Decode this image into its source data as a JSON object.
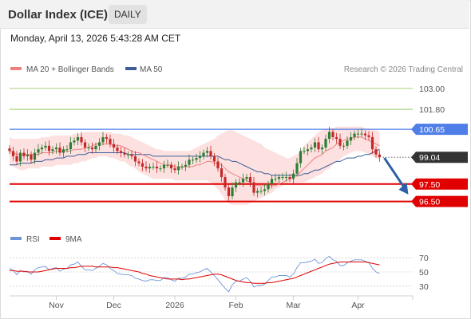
{
  "header": {
    "title": "Dollar Index (ICE)",
    "period": "DAILY"
  },
  "datetime": "Monday, April 13, 2026 5:43:28 AM CET",
  "legend": {
    "ma20": "MA 20 + Bollinger Bands",
    "ma50": "MA 50",
    "copyright": "Research © 2026 Trading Central",
    "rsi": "RSI",
    "ma9": "9MA"
  },
  "colors": {
    "bullish": "#2e7d32",
    "bearish": "#c62828",
    "ma20": "#f08080",
    "bands": "#fcd6d6",
    "ma50": "#3d5f99",
    "resistance": "#8bc34a",
    "pivot": "#4f7ee8",
    "support": "#e00000",
    "last_price_tag": "#333333",
    "rsi": "#6d96d6",
    "rsi_ma": "#e00000"
  },
  "chart_data": [
    {
      "type": "candlestick",
      "x_ticks": [
        "Nov",
        "Dec",
        "2026",
        "Feb",
        "Mar",
        "Apr"
      ],
      "ylim": [
        95.7,
        103.5
      ],
      "levels": [
        {
          "label": "103.00",
          "value": 103.0,
          "kind": "resistance"
        },
        {
          "label": "101.80",
          "value": 101.8,
          "kind": "resistance"
        },
        {
          "label": "100.65",
          "value": 100.65,
          "kind": "pivot"
        },
        {
          "label": "99.04",
          "value": 99.04,
          "kind": "last"
        },
        {
          "label": "97.50",
          "value": 97.5,
          "kind": "support"
        },
        {
          "label": "96.50",
          "value": 96.5,
          "kind": "support"
        }
      ],
      "last_price": 99.04,
      "forecast_arrow": {
        "from": 99.0,
        "to": 96.9,
        "direction": "down"
      },
      "closes": [
        99.4,
        99.1,
        98.8,
        99.3,
        99.1,
        99.2,
        98.9,
        99.3,
        99.5,
        99.6,
        99.7,
        99.4,
        99.5,
        99.6,
        99.3,
        99.5,
        99.5,
        99.9,
        100.0,
        100.2,
        99.9,
        99.6,
        99.6,
        99.5,
        99.7,
        99.9,
        100.2,
        100.1,
        99.8,
        99.6,
        99.4,
        99.3,
        99.2,
        99.2,
        99.1,
        98.8,
        98.7,
        98.5,
        98.4,
        98.5,
        98.5,
        98.4,
        98.4,
        98.6,
        98.6,
        98.4,
        98.3,
        98.5,
        98.5,
        98.6,
        98.9,
        98.9,
        99.0,
        99.1,
        99.3,
        99.4,
        99.1,
        98.8,
        98.4,
        97.9,
        97.3,
        96.8,
        97.3,
        97.6,
        97.6,
        97.8,
        97.9,
        97.6,
        97.0,
        97.1,
        97.1,
        97.2,
        97.5,
        97.8,
        97.8,
        97.9,
        97.9,
        97.9,
        97.8,
        98.1,
        98.7,
        99.4,
        99.4,
        99.5,
        99.6,
        99.9,
        99.5,
        99.6,
        100.1,
        100.5,
        100.2,
        100.1,
        99.7,
        99.7,
        100.0,
        100.2,
        100.4,
        100.4,
        100.4,
        100.3,
        100.2,
        99.5,
        99.2,
        99.04
      ],
      "ma20": [
        99.4,
        99.3,
        99.2,
        99.2,
        99.2,
        99.2,
        99.2,
        99.2,
        99.2,
        99.3,
        99.3,
        99.3,
        99.3,
        99.4,
        99.4,
        99.4,
        99.4,
        99.4,
        99.5,
        99.5,
        99.5,
        99.6,
        99.6,
        99.7,
        99.8,
        99.8,
        99.8,
        99.8,
        99.8,
        99.7,
        99.7,
        99.7,
        99.6,
        99.5,
        99.4,
        99.3,
        99.3,
        99.2,
        99.1,
        99.0,
        98.9,
        98.8,
        98.7,
        98.6,
        98.6,
        98.6,
        98.5,
        98.5,
        98.5,
        98.5,
        98.5,
        98.5,
        98.6,
        98.6,
        98.7,
        98.8,
        98.8,
        98.7,
        98.7,
        98.6,
        98.4,
        98.2,
        98.1,
        98.0,
        97.9,
        97.8,
        97.7,
        97.6,
        97.5,
        97.4,
        97.4,
        97.4,
        97.4,
        97.4,
        97.4,
        97.5,
        97.6,
        97.7,
        97.8,
        97.9,
        98.0,
        98.2,
        98.4,
        98.6,
        98.8,
        99.0,
        99.1,
        99.2,
        99.4,
        99.5,
        99.6,
        99.8,
        99.9,
        100.0,
        100.1,
        100.1,
        100.2,
        100.2,
        100.2,
        100.1,
        100.0,
        99.9,
        99.8,
        99.7
      ],
      "upper_band": [
        100.2,
        100.1,
        100.1,
        100.1,
        100.1,
        100.1,
        100.1,
        100.1,
        100.1,
        100.2,
        100.2,
        100.2,
        100.3,
        100.3,
        100.3,
        100.3,
        100.3,
        100.3,
        100.4,
        100.4,
        100.4,
        100.5,
        100.5,
        100.5,
        100.5,
        100.5,
        100.5,
        100.5,
        100.5,
        100.4,
        100.4,
        100.4,
        100.3,
        100.3,
        100.2,
        100.1,
        100.0,
        99.9,
        99.8,
        99.7,
        99.6,
        99.5,
        99.5,
        99.4,
        99.4,
        99.4,
        99.4,
        99.4,
        99.4,
        99.4,
        99.4,
        99.5,
        99.6,
        99.7,
        99.8,
        99.9,
        100.0,
        100.1,
        100.3,
        100.4,
        100.5,
        100.6,
        100.6,
        100.5,
        100.4,
        100.3,
        100.2,
        100.1,
        100.0,
        99.9,
        99.8,
        99.6,
        99.5,
        99.4,
        99.3,
        99.2,
        99.1,
        99.0,
        99.0,
        99.1,
        99.2,
        99.4,
        99.7,
        99.9,
        100.1,
        100.3,
        100.5,
        100.6,
        100.7,
        100.7,
        100.7,
        100.8,
        100.8,
        100.8,
        100.8,
        100.8,
        100.8,
        100.8,
        100.8,
        100.7,
        100.7,
        100.6,
        100.6,
        100.5
      ],
      "lower_band": [
        98.6,
        98.5,
        98.4,
        98.3,
        98.3,
        98.4,
        98.4,
        98.4,
        98.4,
        98.5,
        98.5,
        98.5,
        98.5,
        98.6,
        98.6,
        98.6,
        98.6,
        98.6,
        98.7,
        98.7,
        98.8,
        98.8,
        98.9,
        99.0,
        99.0,
        99.1,
        99.1,
        99.1,
        99.0,
        99.0,
        98.9,
        98.8,
        98.8,
        98.6,
        98.5,
        98.4,
        98.2,
        98.1,
        98.0,
        97.9,
        97.8,
        97.8,
        97.8,
        97.8,
        97.8,
        97.8,
        97.7,
        97.7,
        97.7,
        97.7,
        97.7,
        97.7,
        97.7,
        97.7,
        97.7,
        97.7,
        97.6,
        97.4,
        97.2,
        96.9,
        96.6,
        96.4,
        96.3,
        96.3,
        96.3,
        96.3,
        96.3,
        96.4,
        96.5,
        96.6,
        96.7,
        96.8,
        96.9,
        97.0,
        97.2,
        97.3,
        97.4,
        97.5,
        97.6,
        97.6,
        97.6,
        97.6,
        97.6,
        97.7,
        97.8,
        97.9,
        98.0,
        98.1,
        98.3,
        98.4,
        98.6,
        98.8,
        98.9,
        99.1,
        99.2,
        99.3,
        99.4,
        99.4,
        99.4,
        99.3,
        99.2,
        99.1,
        99.0,
        98.9
      ],
      "ma50": [
        98.6,
        98.6,
        98.6,
        98.7,
        98.7,
        98.7,
        98.7,
        98.8,
        98.8,
        98.8,
        98.9,
        98.9,
        98.9,
        99.0,
        99.0,
        99.0,
        99.1,
        99.1,
        99.1,
        99.2,
        99.2,
        99.2,
        99.3,
        99.3,
        99.3,
        99.3,
        99.3,
        99.3,
        99.3,
        99.3,
        99.3,
        99.3,
        99.3,
        99.2,
        99.2,
        99.2,
        99.2,
        99.2,
        99.2,
        99.2,
        99.1,
        99.1,
        99.1,
        99.1,
        99.1,
        99.1,
        99.1,
        99.1,
        99.1,
        99.1,
        99.1,
        99.1,
        99.1,
        99.1,
        99.1,
        99.1,
        99.1,
        99.1,
        99.1,
        99.0,
        98.9,
        98.9,
        98.8,
        98.8,
        98.7,
        98.6,
        98.5,
        98.4,
        98.3,
        98.2,
        98.2,
        98.1,
        98.1,
        98.0,
        98.0,
        98.0,
        98.0,
        98.0,
        98.0,
        98.0,
        98.0,
        98.0,
        98.1,
        98.1,
        98.2,
        98.3,
        98.3,
        98.4,
        98.5,
        98.6,
        98.7,
        98.8,
        98.8,
        98.9,
        99.0,
        99.0,
        99.0,
        99.1,
        99.1,
        99.2,
        99.2,
        99.3,
        99.4,
        99.5
      ]
    },
    {
      "type": "line",
      "ylim": [
        22,
        78
      ],
      "y_ticks": [
        "70",
        "50",
        "30"
      ],
      "guide_levels": [
        70,
        50,
        30
      ],
      "series": [
        {
          "name": "RSI",
          "values": [
            55,
            52,
            46,
            52,
            50,
            51,
            47,
            53,
            56,
            57,
            58,
            53,
            55,
            56,
            51,
            54,
            55,
            60,
            61,
            64,
            58,
            53,
            53,
            52,
            55,
            58,
            62,
            60,
            55,
            52,
            48,
            47,
            46,
            46,
            45,
            41,
            40,
            38,
            37,
            39,
            39,
            38,
            38,
            42,
            42,
            39,
            37,
            41,
            41,
            43,
            47,
            47,
            49,
            50,
            53,
            55,
            50,
            45,
            39,
            33,
            27,
            22,
            32,
            37,
            37,
            40,
            42,
            37,
            29,
            31,
            31,
            33,
            38,
            43,
            43,
            45,
            45,
            45,
            43,
            47,
            56,
            63,
            63,
            64,
            65,
            68,
            62,
            63,
            69,
            72,
            67,
            65,
            59,
            59,
            63,
            65,
            67,
            67,
            67,
            65,
            63,
            55,
            50,
            48
          ]
        },
        {
          "name": "9MA",
          "values": [
            52,
            52,
            51,
            51,
            51,
            50,
            50,
            50,
            50,
            51,
            52,
            53,
            54,
            55,
            55,
            55,
            55,
            56,
            56,
            57,
            58,
            58,
            58,
            58,
            57,
            57,
            57,
            57,
            57,
            56,
            56,
            55,
            54,
            53,
            52,
            51,
            50,
            48,
            47,
            45,
            44,
            43,
            42,
            41,
            40,
            40,
            40,
            40,
            39,
            40,
            40,
            41,
            42,
            43,
            44,
            45,
            46,
            47,
            47,
            46,
            44,
            42,
            40,
            38,
            37,
            36,
            35,
            35,
            34,
            34,
            34,
            34,
            35,
            35,
            36,
            37,
            38,
            39,
            40,
            41,
            43,
            45,
            47,
            49,
            51,
            53,
            55,
            57,
            59,
            61,
            62,
            63,
            64,
            64,
            64,
            64,
            64,
            64,
            64,
            64,
            63,
            62,
            61,
            60
          ]
        }
      ]
    }
  ]
}
